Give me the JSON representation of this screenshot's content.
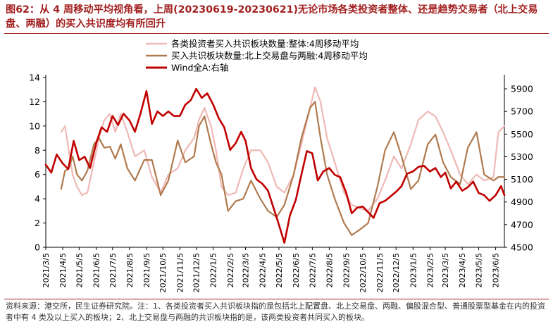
{
  "figure": {
    "title": "图62：从 4 周移动平均视角看，上周(20230619-20230621)无论市场各类投资者整体、还是趋势交易者（北上交易盘、两融）的买入共识度均有所回升",
    "note": "资料来源：港交所，民生证券研究院。注：1、各类投资者买入共识板块指的是包括北上配置盘、北上交易盘、两融、偏股混合型、普通股票型基金在内的投资者中有 4 类及以上买入的板块；2、北上交易盘与两融的共识板块指的是，该两类投资者共同买入的板块。",
    "accent_color": "#a32121"
  },
  "chart_data": {
    "type": "line",
    "x": [
      "2021/3/5",
      "2021/4/5",
      "2021/5/5",
      "2021/6/5",
      "2021/7/5",
      "2021/8/5",
      "2021/9/5",
      "2021/10/5",
      "2021/11/5",
      "2021/12/5",
      "2022/1/5",
      "2022/2/5",
      "2022/3/5",
      "2022/4/5",
      "2022/5/5",
      "2022/6/5",
      "2022/7/5",
      "2022/8/5",
      "2022/9/5",
      "2022/10/5",
      "2022/11/5",
      "2022/12/5",
      "2023/1/5",
      "2023/2/5",
      "2023/3/5",
      "2023/4/5",
      "2023/5/5",
      "2023/6/5"
    ],
    "x_range": [
      "2021/3/5",
      "2023/6/21"
    ],
    "ylim_left": [
      0,
      14
    ],
    "yticks_left": [
      0,
      2,
      4,
      6,
      8,
      10,
      12,
      14
    ],
    "ylim_right": [
      4500,
      6000
    ],
    "yticks_right": [
      4500,
      4700,
      4900,
      5100,
      5300,
      5500,
      5700,
      5900
    ],
    "legend_position": "top-center",
    "series": [
      {
        "name": "各类投资者买入共识板块数量:整体:4周移动平均",
        "color": "#efb9b5",
        "axis": "left",
        "x": [
          "2021/4/2",
          "2021/4/9",
          "2021/4/16",
          "2021/4/23",
          "2021/5/1",
          "2021/5/10",
          "2021/5/20",
          "2021/6/1",
          "2021/6/10",
          "2021/6/20",
          "2021/6/30",
          "2021/7/10",
          "2021/7/20",
          "2021/8/1",
          "2021/8/15",
          "2021/9/1",
          "2021/9/15",
          "2021/10/1",
          "2021/10/15",
          "2021/11/1",
          "2021/11/15",
          "2021/12/1",
          "2021/12/10",
          "2021/12/20",
          "2022/1/1",
          "2022/1/10",
          "2022/1/20",
          "2022/2/1",
          "2022/2/15",
          "2022/3/1",
          "2022/3/15",
          "2022/4/1",
          "2022/4/15",
          "2022/5/1",
          "2022/5/15",
          "2022/6/1",
          "2022/6/15",
          "2022/7/1",
          "2022/7/10",
          "2022/7/20",
          "2022/8/1",
          "2022/8/15",
          "2022/9/1",
          "2022/9/15",
          "2022/10/1",
          "2022/10/15",
          "2022/11/1",
          "2022/11/15",
          "2022/12/1",
          "2022/12/15",
          "2023/1/1",
          "2023/1/15",
          "2023/2/1",
          "2023/2/15",
          "2023/3/1",
          "2023/3/15",
          "2023/4/1",
          "2023/4/15",
          "2023/5/1",
          "2023/5/15",
          "2023/6/1",
          "2023/6/10",
          "2023/6/21"
        ],
        "values": [
          9.5,
          10.0,
          8.0,
          6.0,
          5.0,
          4.3,
          4.5,
          7.0,
          9.0,
          10.5,
          11.0,
          9.5,
          11.0,
          9.5,
          7.5,
          8.0,
          5.8,
          4.5,
          6.0,
          6.5,
          8.0,
          9.0,
          10.5,
          11.5,
          10.0,
          8.0,
          5.0,
          4.3,
          4.5,
          6.5,
          8.0,
          8.0,
          7.0,
          5.0,
          4.5,
          6.0,
          8.5,
          11.5,
          13.2,
          12.0,
          9.0,
          7.0,
          4.5,
          3.5,
          3.2,
          3.0,
          4.0,
          5.5,
          7.5,
          6.5,
          8.5,
          10.5,
          11.2,
          10.8,
          9.5,
          8.0,
          6.0,
          5.2,
          6.0,
          5.5,
          5.8,
          9.5,
          10.0
        ]
      },
      {
        "name": "买入共识板块数量:北上交易盘与两融:4周移动平均",
        "color": "#b07a4f",
        "axis": "left",
        "x": [
          "2021/4/2",
          "2021/4/9",
          "2021/4/16",
          "2021/4/23",
          "2021/5/1",
          "2021/5/10",
          "2021/5/20",
          "2021/6/1",
          "2021/6/10",
          "2021/6/20",
          "2021/6/30",
          "2021/7/10",
          "2021/7/20",
          "2021/8/1",
          "2021/8/15",
          "2021/9/1",
          "2021/9/15",
          "2021/10/1",
          "2021/10/15",
          "2021/11/1",
          "2021/11/15",
          "2021/12/1",
          "2021/12/10",
          "2021/12/20",
          "2022/1/1",
          "2022/1/10",
          "2022/1/20",
          "2022/2/1",
          "2022/2/15",
          "2022/3/1",
          "2022/3/15",
          "2022/4/1",
          "2022/4/15",
          "2022/5/1",
          "2022/5/15",
          "2022/6/1",
          "2022/6/15",
          "2022/7/1",
          "2022/7/10",
          "2022/7/20",
          "2022/8/1",
          "2022/8/15",
          "2022/9/1",
          "2022/9/15",
          "2022/10/1",
          "2022/10/15",
          "2022/11/1",
          "2022/11/15",
          "2022/12/1",
          "2022/12/15",
          "2023/1/1",
          "2023/1/15",
          "2023/2/1",
          "2023/2/15",
          "2023/3/1",
          "2023/3/15",
          "2023/4/1",
          "2023/4/15",
          "2023/5/1",
          "2023/5/15",
          "2023/6/1",
          "2023/6/10",
          "2023/6/21"
        ],
        "values": [
          4.8,
          6.3,
          6.5,
          7.5,
          6.0,
          5.5,
          6.3,
          8.5,
          9.0,
          8.2,
          8.3,
          7.3,
          8.5,
          6.5,
          5.5,
          7.2,
          7.2,
          4.3,
          5.5,
          8.8,
          7.0,
          7.5,
          10.0,
          10.8,
          8.5,
          7.0,
          6.0,
          3.0,
          3.8,
          4.0,
          5.5,
          4.0,
          3.0,
          2.5,
          3.5,
          6.0,
          9.0,
          11.5,
          12.0,
          9.0,
          6.0,
          4.0,
          2.0,
          1.0,
          1.5,
          2.0,
          5.0,
          8.0,
          9.5,
          7.5,
          4.8,
          5.5,
          8.5,
          9.3,
          7.0,
          5.8,
          5.2,
          8.2,
          9.5,
          6.0,
          5.5,
          5.8,
          5.8
        ]
      },
      {
        "name": "Wind全A:右轴",
        "color": "#c00000",
        "axis": "right",
        "x": [
          "2021/3/5",
          "2021/3/15",
          "2021/3/25",
          "2021/4/5",
          "2021/4/15",
          "2021/4/25",
          "2021/5/5",
          "2021/5/15",
          "2021/5/25",
          "2021/6/5",
          "2021/6/15",
          "2021/6/25",
          "2021/7/5",
          "2021/7/15",
          "2021/7/25",
          "2021/8/5",
          "2021/8/15",
          "2021/8/25",
          "2021/9/5",
          "2021/9/15",
          "2021/9/25",
          "2021/10/5",
          "2021/10/15",
          "2021/10/25",
          "2021/11/5",
          "2021/11/15",
          "2021/11/25",
          "2021/12/5",
          "2021/12/15",
          "2021/12/25",
          "2022/1/5",
          "2022/1/15",
          "2022/1/25",
          "2022/2/5",
          "2022/2/15",
          "2022/2/25",
          "2022/3/5",
          "2022/3/15",
          "2022/3/25",
          "2022/4/5",
          "2022/4/15",
          "2022/4/25",
          "2022/5/5",
          "2022/5/15",
          "2022/5/25",
          "2022/6/5",
          "2022/6/15",
          "2022/6/25",
          "2022/7/5",
          "2022/7/15",
          "2022/7/25",
          "2022/8/5",
          "2022/8/15",
          "2022/8/25",
          "2022/9/5",
          "2022/9/15",
          "2022/9/25",
          "2022/10/5",
          "2022/10/15",
          "2022/10/25",
          "2022/11/5",
          "2022/11/15",
          "2022/11/25",
          "2022/12/5",
          "2022/12/15",
          "2022/12/25",
          "2023/1/5",
          "2023/1/15",
          "2023/1/25",
          "2023/2/5",
          "2023/2/15",
          "2023/2/25",
          "2023/3/5",
          "2023/3/15",
          "2023/3/25",
          "2023/4/5",
          "2023/4/15",
          "2023/4/25",
          "2023/5/5",
          "2023/5/15",
          "2023/5/25",
          "2023/6/5",
          "2023/6/15",
          "2023/6/21"
        ],
        "values": [
          5230,
          5160,
          5320,
          5240,
          5190,
          5440,
          5270,
          5300,
          5200,
          5420,
          5560,
          5520,
          5660,
          5580,
          5680,
          5620,
          5520,
          5680,
          5880,
          5590,
          5700,
          5660,
          5700,
          5660,
          5660,
          5760,
          5800,
          5900,
          5820,
          5860,
          5760,
          5640,
          5560,
          5360,
          5420,
          5520,
          5440,
          5200,
          5100,
          5060,
          5000,
          4850,
          4700,
          4540,
          4780,
          4920,
          5140,
          5350,
          5330,
          5090,
          5170,
          5200,
          5140,
          5120,
          4980,
          4800,
          4850,
          4860,
          4810,
          4760,
          4890,
          4910,
          4950,
          4990,
          5040,
          5150,
          5170,
          5210,
          5220,
          5170,
          5200,
          5120,
          5160,
          5020,
          5080,
          5000,
          5030,
          5080,
          4980,
          4960,
          4910,
          4960,
          5040,
          4960
        ]
      }
    ]
  }
}
